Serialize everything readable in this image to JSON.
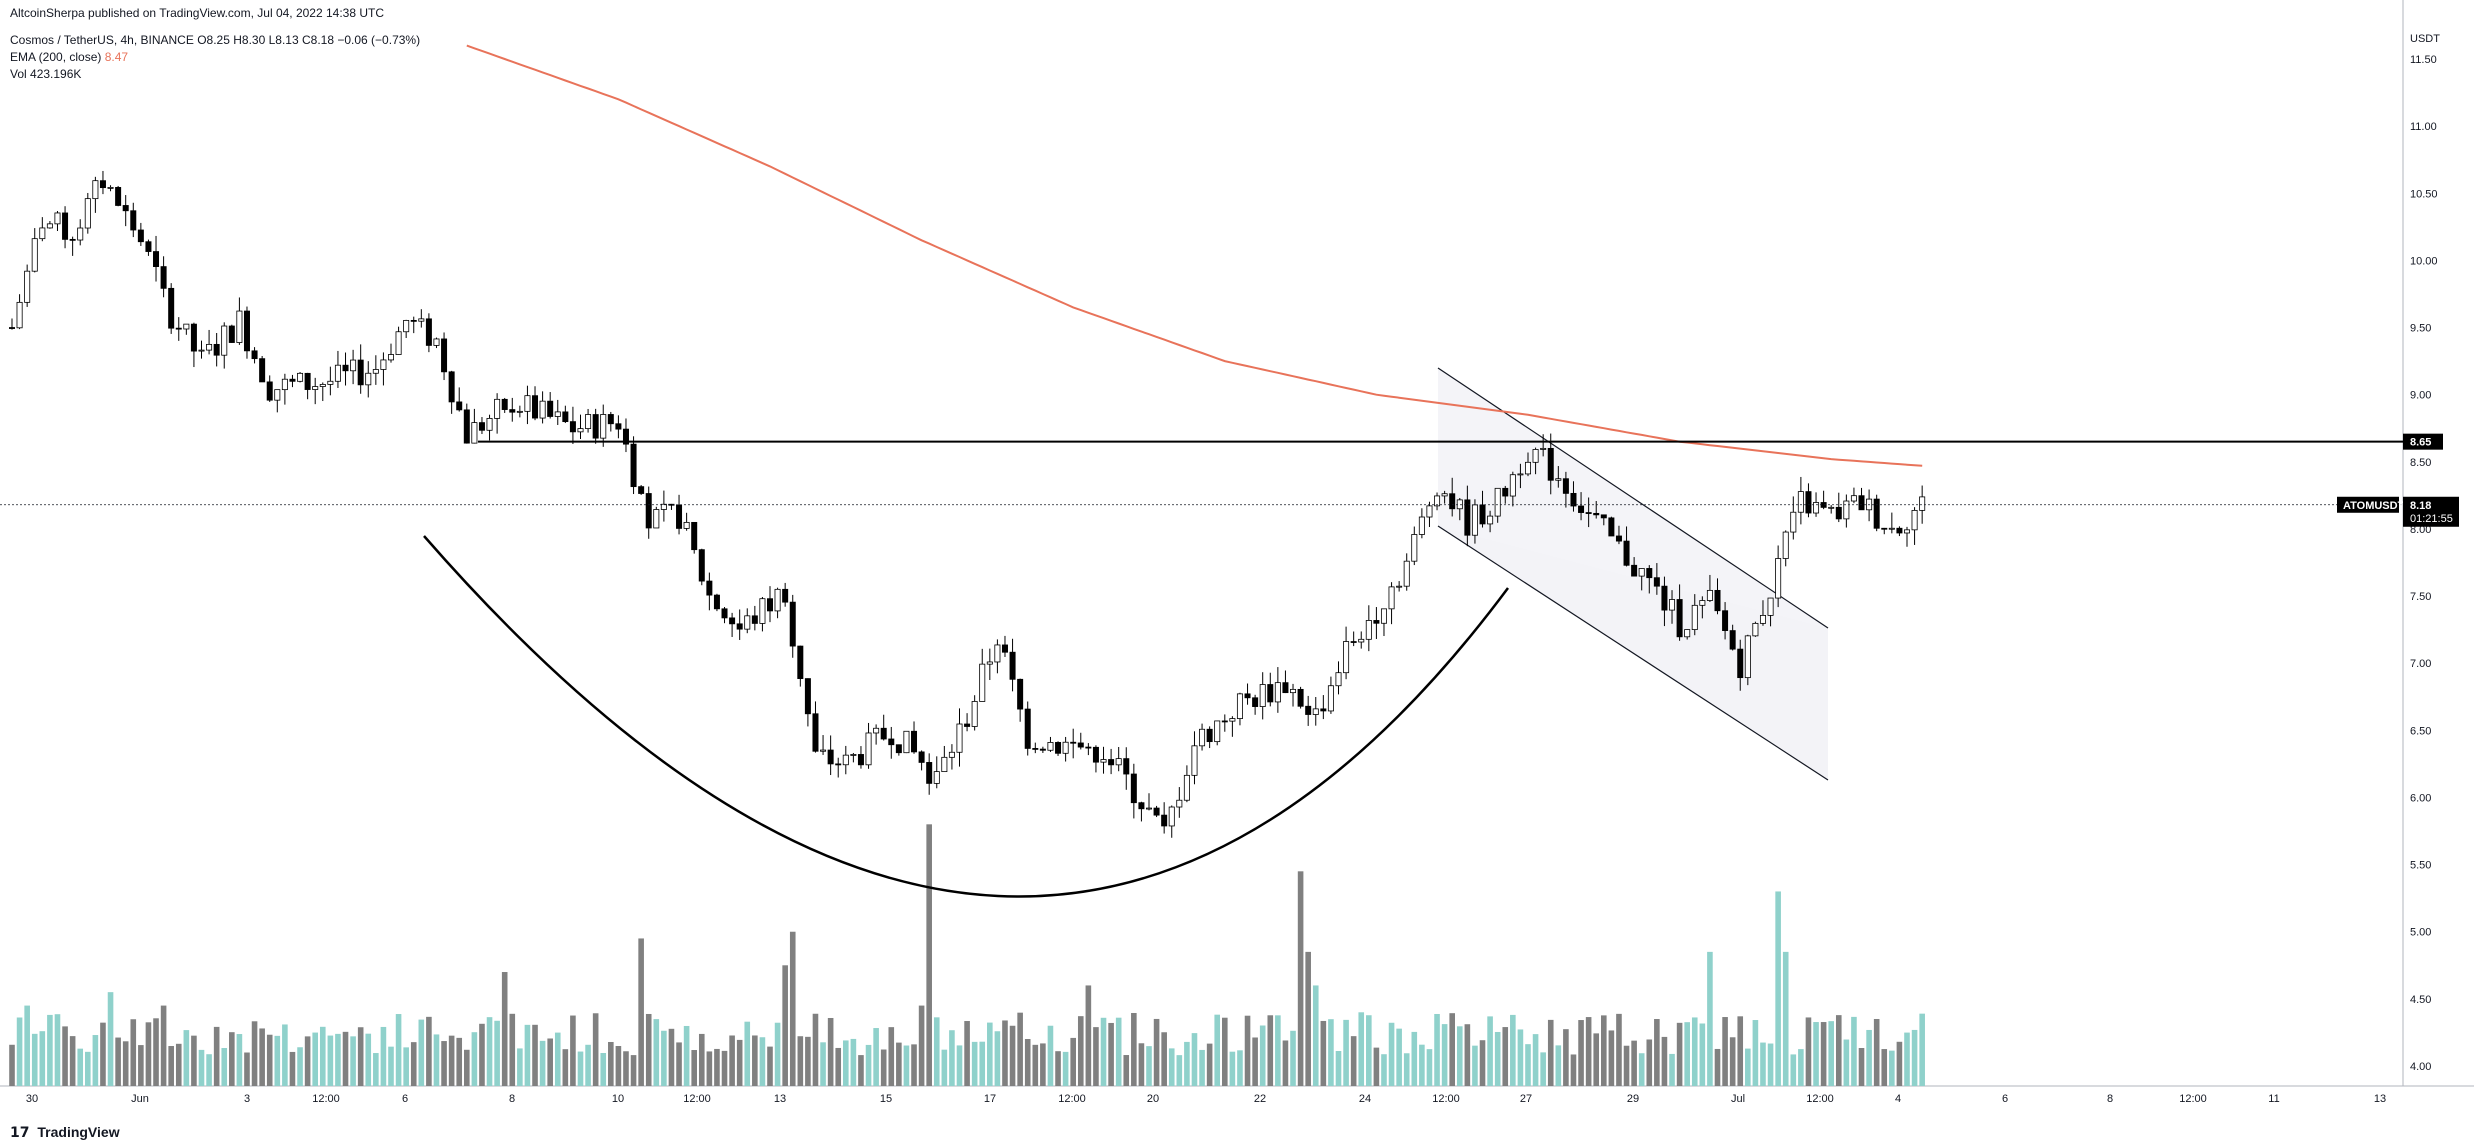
{
  "header": {
    "publisher": "AltcoinSherpa published on TradingView.com, Jul 04, 2022 14:38 UTC",
    "symbol_line": "Cosmos / TetherUS, 4h, BINANCE",
    "ohlc": {
      "open": "O8.25",
      "high": "H8.30",
      "low": "L8.13",
      "close": "C8.18",
      "change": "−0.06 (−0.73%)"
    },
    "ema_label": "EMA (200, close)",
    "ema_value": "8.47",
    "vol_label": "Vol",
    "vol_value": "423.196K"
  },
  "footer": {
    "logo_text": "TradingView"
  },
  "colors": {
    "up": "#ffffff",
    "down": "#000000",
    "ema": "#e8735a",
    "vol_up": "#8fd1cb",
    "vol_down": "#808080",
    "price_line": "#131722"
  },
  "chart_data": {
    "type": "candlestick",
    "symbol": "ATOMUSDT",
    "quote_currency": "USDT",
    "y_axis_unit": "USDT",
    "yticks": [
      "11.50",
      "11.00",
      "10.50",
      "10.00",
      "9.50",
      "9.00",
      "8.50",
      "8.00",
      "7.50",
      "7.00",
      "6.50",
      "6.00",
      "5.50",
      "5.00",
      "4.50",
      "4.00"
    ],
    "xticks": [
      "30",
      "Jun",
      "3",
      "12:00",
      "6",
      "8",
      "10",
      "12:00",
      "13",
      "15",
      "17",
      "12:00",
      "20",
      "22",
      "24",
      "12:00",
      "27",
      "29",
      "Jul",
      "12:00",
      "4",
      "6",
      "8",
      "12:00",
      "11",
      "13"
    ],
    "current_price": "8.18",
    "countdown": "01:21:55",
    "resistance_level": "8.65",
    "resistance_price": 8.65,
    "ylim": [
      3.85,
      11.65
    ],
    "close_anchors": [
      [
        0,
        9.5
      ],
      [
        4,
        10.3
      ],
      [
        8,
        10.2
      ],
      [
        12,
        10.6
      ],
      [
        17,
        10.15
      ],
      [
        21,
        9.6
      ],
      [
        25,
        9.25
      ],
      [
        30,
        9.55
      ],
      [
        34,
        9.05
      ],
      [
        42,
        9.1
      ],
      [
        48,
        9.2
      ],
      [
        52,
        9.55
      ],
      [
        56,
        9.4
      ],
      [
        60,
        8.7
      ],
      [
        66,
        8.95
      ],
      [
        74,
        8.75
      ],
      [
        80,
        8.8
      ],
      [
        84,
        8.05
      ],
      [
        88,
        8.1
      ],
      [
        92,
        7.5
      ],
      [
        96,
        7.25
      ],
      [
        102,
        7.55
      ],
      [
        106,
        6.3
      ],
      [
        110,
        6.25
      ],
      [
        116,
        6.5
      ],
      [
        122,
        6.15
      ],
      [
        126,
        6.6
      ],
      [
        130,
        7.2
      ],
      [
        134,
        6.45
      ],
      [
        138,
        6.4
      ],
      [
        144,
        6.35
      ],
      [
        148,
        6.05
      ],
      [
        152,
        5.72
      ],
      [
        156,
        6.4
      ],
      [
        162,
        6.7
      ],
      [
        168,
        6.85
      ],
      [
        172,
        6.6
      ],
      [
        176,
        7.1
      ],
      [
        180,
        7.4
      ],
      [
        184,
        7.75
      ],
      [
        188,
        8.35
      ],
      [
        192,
        8.05
      ],
      [
        196,
        8.2
      ],
      [
        200,
        8.6
      ],
      [
        204,
        8.4
      ],
      [
        208,
        8.1
      ],
      [
        212,
        7.85
      ],
      [
        216,
        7.6
      ],
      [
        220,
        7.3
      ],
      [
        224,
        7.45
      ],
      [
        228,
        7.0
      ],
      [
        232,
        7.55
      ],
      [
        236,
        8.2
      ],
      [
        240,
        8.1
      ],
      [
        244,
        8.2
      ],
      [
        248,
        8.0
      ],
      [
        252,
        8.18
      ]
    ],
    "ema_anchors": [
      [
        60,
        11.6
      ],
      [
        80,
        11.2
      ],
      [
        100,
        10.7
      ],
      [
        120,
        10.15
      ],
      [
        140,
        9.65
      ],
      [
        160,
        9.25
      ],
      [
        180,
        9.0
      ],
      [
        200,
        8.85
      ],
      [
        220,
        8.65
      ],
      [
        240,
        8.52
      ],
      [
        252,
        8.47
      ]
    ],
    "volume_spikes": [
      [
        2,
        4.45
      ],
      [
        13,
        4.55
      ],
      [
        20,
        4.45
      ],
      [
        65,
        4.7
      ],
      [
        83,
        4.95
      ],
      [
        102,
        4.75
      ],
      [
        103,
        5.0
      ],
      [
        120,
        4.45
      ],
      [
        121,
        5.8
      ],
      [
        142,
        4.6
      ],
      [
        170,
        5.45
      ],
      [
        171,
        4.85
      ],
      [
        172,
        4.6
      ],
      [
        178,
        4.4
      ],
      [
        224,
        4.85
      ],
      [
        233,
        5.3
      ],
      [
        234,
        4.85
      ]
    ]
  }
}
